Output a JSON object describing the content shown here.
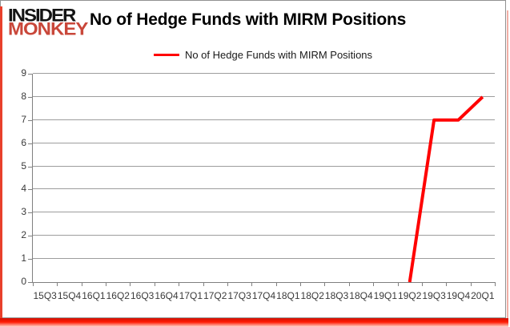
{
  "logo": {
    "line1": "INSIDER",
    "line2": "MONKEY",
    "brand_black": "#141414",
    "brand_red": "#c9473a"
  },
  "header": {
    "title": "No of Hedge Funds with MIRM Positions"
  },
  "legend": {
    "label": "No of Hedge Funds with MIRM Positions",
    "swatch_color": "#ff0000",
    "position": "top-center"
  },
  "chart_data": {
    "type": "line",
    "title": "No of Hedge Funds with MIRM Positions",
    "xlabel": "",
    "ylabel": "",
    "categories": [
      "15Q3",
      "15Q4",
      "16Q1",
      "16Q2",
      "16Q3",
      "16Q4",
      "17Q1",
      "17Q2",
      "17Q3",
      "17Q4",
      "18Q1",
      "18Q2",
      "18Q3",
      "18Q4",
      "19Q1",
      "19Q2",
      "19Q3",
      "19Q4",
      "20Q1"
    ],
    "series": [
      {
        "name": "No of Hedge Funds with MIRM Positions",
        "color": "#ff0000",
        "values": [
          null,
          null,
          null,
          null,
          null,
          null,
          null,
          null,
          null,
          null,
          null,
          null,
          null,
          null,
          null,
          0,
          7,
          7,
          8
        ]
      }
    ],
    "ylim": [
      0,
      9
    ],
    "ytick_step": 1,
    "grid": "horizontal",
    "legend_position": "top",
    "line_width": 4,
    "gridline_color": "#9d9d9d",
    "axis_color": "#808080",
    "tick_label_color": "#3a3a3a"
  }
}
